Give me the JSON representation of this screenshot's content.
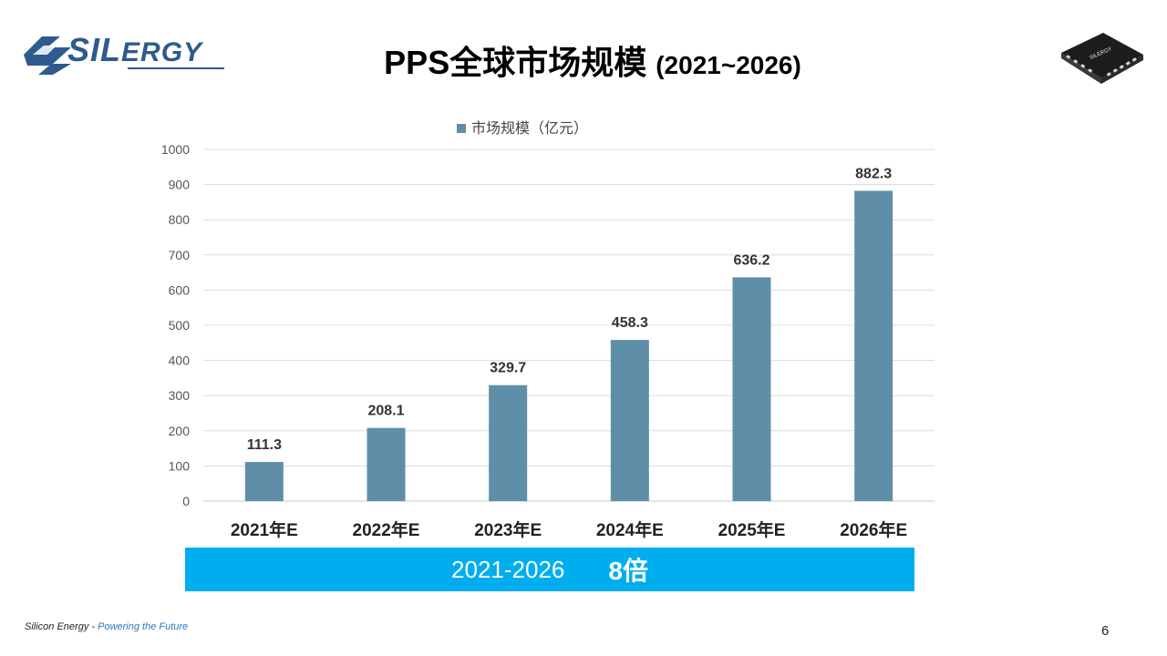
{
  "logo": {
    "brand_a": "SIL",
    "brand_b": "ERGY"
  },
  "title": {
    "main": "PPS全球市场规模",
    "range": "(2021~2026)"
  },
  "chip": {
    "label": "SILERGY"
  },
  "chart_data": {
    "type": "bar",
    "categories": [
      "2021年E",
      "2022年E",
      "2023年E",
      "2024年E",
      "2025年E",
      "2026年E"
    ],
    "values": [
      111.3,
      208.1,
      329.7,
      458.3,
      636.2,
      882.3
    ],
    "series_name": "市场规模（亿元）",
    "ylim": [
      0,
      1000
    ],
    "yticks": [
      0,
      100,
      200,
      300,
      400,
      500,
      600,
      700,
      800,
      900,
      1000
    ],
    "title": "",
    "xlabel": "",
    "ylabel": "",
    "bar_color": "#5f8fa8",
    "grid": true,
    "legend": "top-center"
  },
  "banner": {
    "range": "2021-2026",
    "multiple": "8倍"
  },
  "footer": {
    "company": "Silicon Energy",
    "sep": " - ",
    "tagline": "Powering the Future"
  },
  "page": {
    "number": "6"
  }
}
